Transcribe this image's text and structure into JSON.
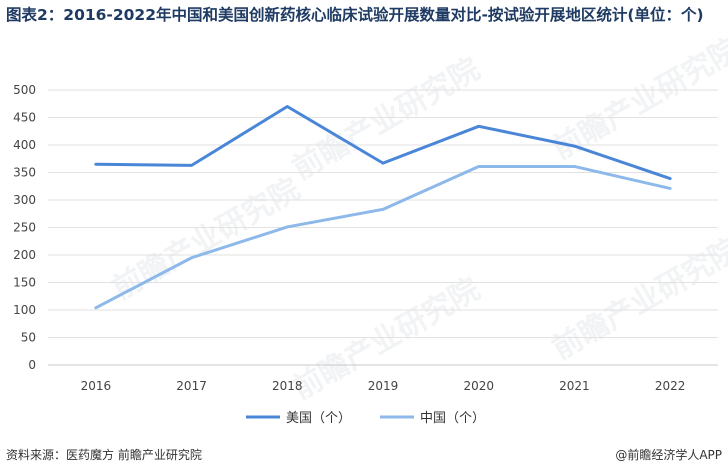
{
  "title": "图表2：2016-2022年中国和美国创新药核心临床试验开展数量对比-按试验开展地区统计(单位：个)",
  "source": "资料来源：医药魔方 前瞻产业研究院",
  "brand": "@前瞻经济学人APP",
  "watermark_text": "前瞻产业研究院",
  "colors": {
    "us": "#4a86d8",
    "cn": "#8db8ea",
    "grid": "#e2e2e2",
    "title": "#1f3b63"
  },
  "chart_data": {
    "type": "line",
    "title": "图表2：2016-2022年中国和美国创新药核心临床试验开展数量对比-按试验开展地区统计(单位：个)",
    "categories": [
      "2016",
      "2017",
      "2018",
      "2019",
      "2020",
      "2021",
      "2022"
    ],
    "series": [
      {
        "name": "美国（个）",
        "values": [
          365,
          363,
          470,
          367,
          434,
          398,
          339
        ]
      },
      {
        "name": "中国（个）",
        "values": [
          104,
          195,
          251,
          283,
          361,
          361,
          321
        ]
      }
    ],
    "yticks": [
      0,
      50,
      100,
      150,
      200,
      250,
      300,
      350,
      400,
      450,
      500
    ],
    "ylim": [
      0,
      500
    ],
    "grid": true,
    "legend": "bottom-center"
  }
}
